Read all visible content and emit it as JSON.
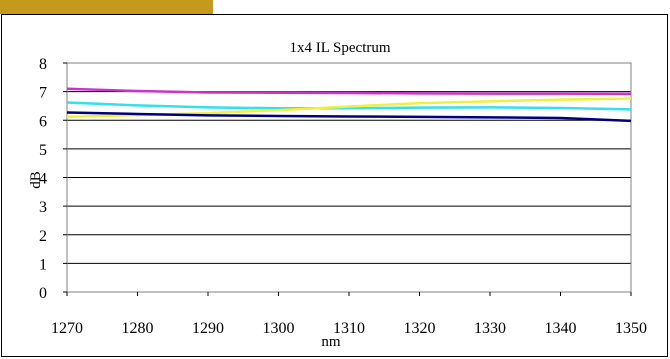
{
  "chart_data": {
    "type": "line",
    "title": "1x4 IL Spectrum",
    "xlabel": "nm",
    "ylabel": "dB",
    "x_ticks": [
      1270,
      1280,
      1290,
      1300,
      1310,
      1320,
      1330,
      1340,
      1350
    ],
    "y_ticks": [
      0,
      1,
      2,
      3,
      4,
      5,
      6,
      7,
      8
    ],
    "xlim": [
      1270,
      1350
    ],
    "ylim": [
      0,
      8
    ],
    "grid": "horizontal",
    "legend": "none",
    "x": [
      1270,
      1280,
      1290,
      1300,
      1310,
      1320,
      1330,
      1340,
      1350
    ],
    "series": [
      {
        "color": "#cc33cc",
        "values": [
          7.1,
          7.02,
          6.97,
          6.96,
          6.95,
          6.94,
          6.93,
          6.93,
          6.92
        ]
      },
      {
        "color": "#33e0f0",
        "values": [
          6.62,
          6.52,
          6.45,
          6.42,
          6.42,
          6.44,
          6.45,
          6.43,
          6.38
        ]
      },
      {
        "color": "#f0f040",
        "values": [
          6.12,
          6.18,
          6.25,
          6.35,
          6.48,
          6.6,
          6.66,
          6.72,
          6.76
        ]
      },
      {
        "color": "#000080",
        "values": [
          6.27,
          6.22,
          6.17,
          6.15,
          6.13,
          6.12,
          6.1,
          6.08,
          5.98
        ]
      }
    ]
  }
}
